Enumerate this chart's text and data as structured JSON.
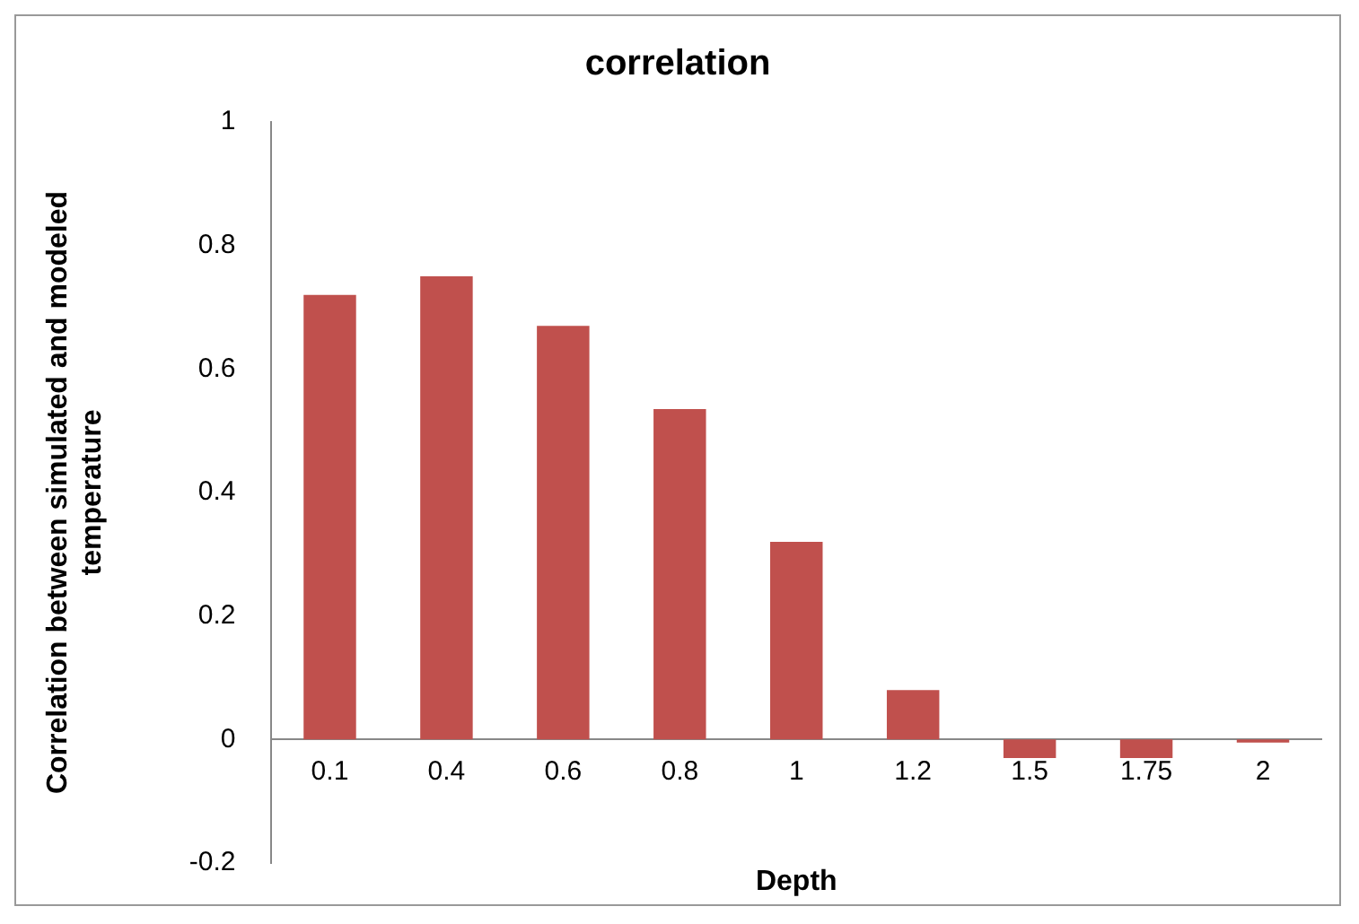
{
  "chart_data": {
    "type": "bar",
    "title": "correlation",
    "xlabel": "Depth",
    "ylabel": "Correlation between simulated and modeled temperature",
    "categories": [
      "0.1",
      "0.4",
      "0.6",
      "0.8",
      "1",
      "1.2",
      "1.5",
      "1.75",
      "2"
    ],
    "values": [
      0.72,
      0.75,
      0.67,
      0.535,
      0.32,
      0.08,
      -0.03,
      -0.03,
      -0.005
    ],
    "color": "#c0504d",
    "ylim": [
      -0.2,
      1
    ],
    "yticks": [
      -0.2,
      0,
      0.2,
      0.4,
      0.6,
      0.8,
      1
    ],
    "grid": false,
    "legend": false
  }
}
